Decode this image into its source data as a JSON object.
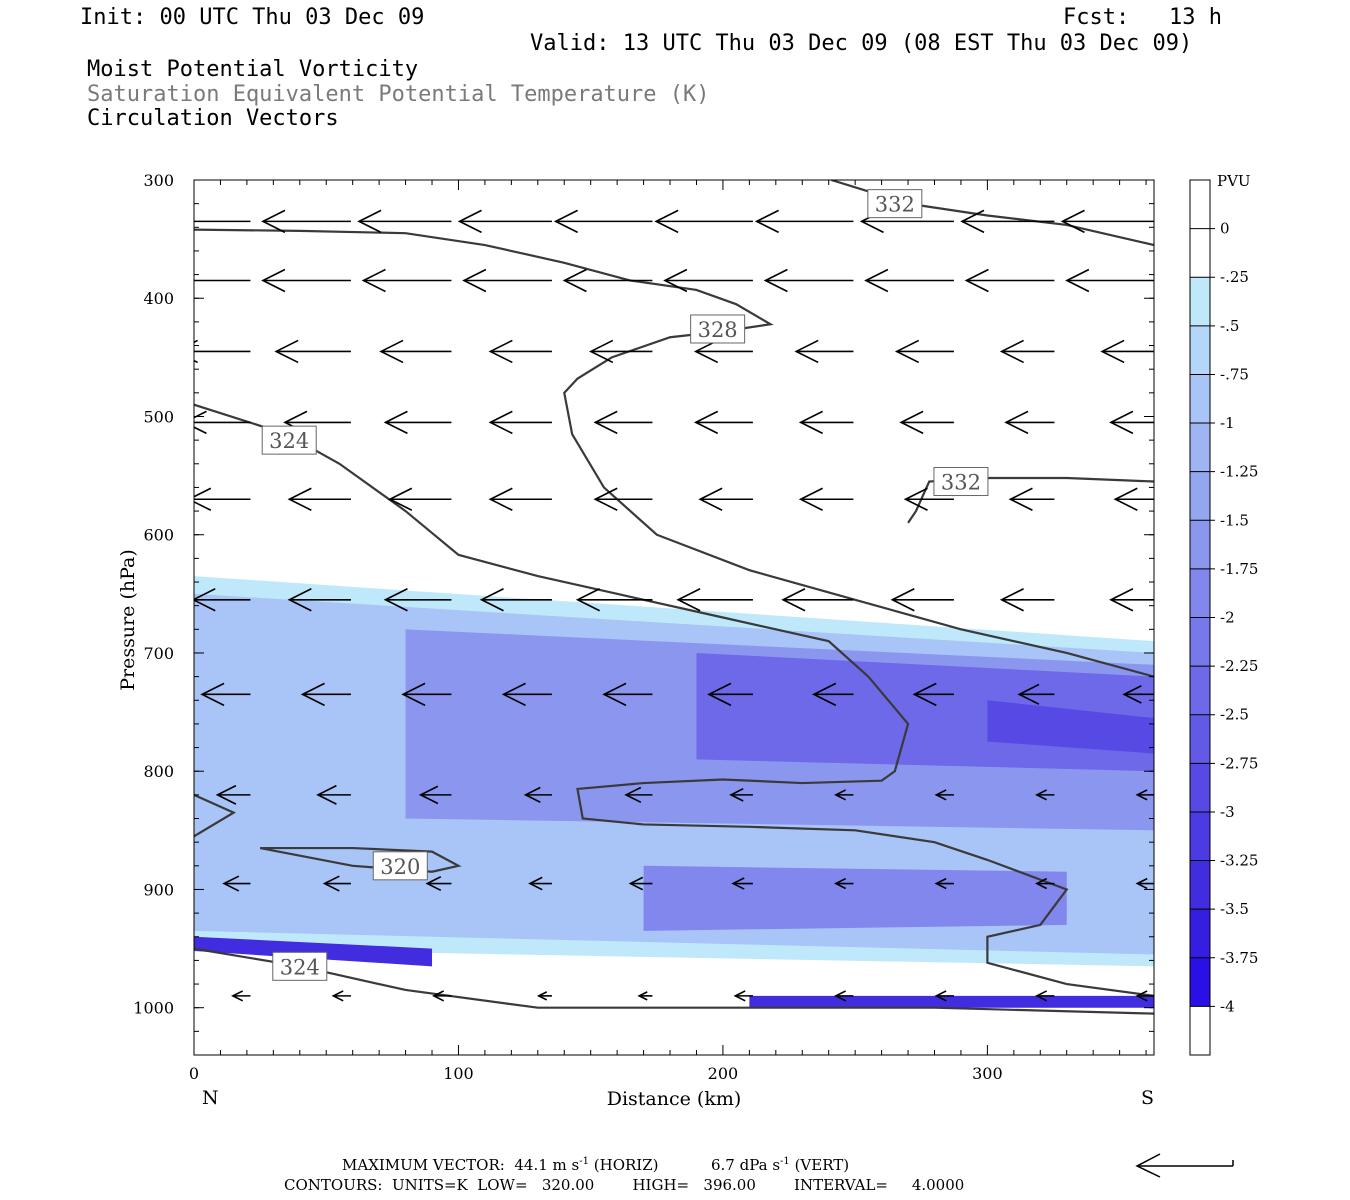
{
  "header": {
    "init": "Init: 00 UTC Thu 03 Dec 09",
    "fcst": "Fcst:   13 h",
    "valid": "Valid: 13 UTC Thu 03 Dec 09 (08 EST Thu 03 Dec 09)",
    "field1": "Moist Potential Vorticity",
    "field2": "Saturation Equivalent Potential Temperature (K)",
    "field3": "Circulation Vectors"
  },
  "footer": {
    "maxvec_label": "MAXIMUM VECTOR:",
    "horiz": "44.1 m s",
    "horiz_unit": "(HORIZ)",
    "vert": "6.7 dPa s",
    "vert_unit": "(VERT)",
    "exp": "-1",
    "contours": "CONTOURS:  UNITS=K  LOW=   320.00        HIGH=   396.00        INTERVAL=     4.0000"
  },
  "colors": {
    "pv_scale": [
      "#ffffff",
      "#bfe9fb",
      "#b4d6f8",
      "#a9c4f6",
      "#9fb4f3",
      "#95a6f1",
      "#8b97ef",
      "#8187ec",
      "#7778ea",
      "#6d69e8",
      "#625ae6",
      "#574ae4",
      "#4c3be2",
      "#412ce0",
      "#361ee0",
      "#2a0fe6"
    ],
    "contour": "#3a3a3a"
  },
  "chart_data": {
    "type": "heatmap",
    "xlabel": "Distance (km)",
    "ylabel": "Pressure (hPa)",
    "xlim": [
      0,
      363
    ],
    "ylim": [
      1040,
      300
    ],
    "y_scale": "linear",
    "x_ticks": [
      0,
      100,
      200,
      300
    ],
    "y_ticks": [
      300,
      400,
      500,
      600,
      700,
      800,
      900,
      1000
    ],
    "left_end_label": "N",
    "right_end_label": "S",
    "colorbar": {
      "title": "PVU",
      "labels": [
        "0",
        "-.25",
        "-.5",
        "-.75",
        "-1",
        "-1.25",
        "-1.5",
        "-1.75",
        "-2",
        "-2.25",
        "-2.5",
        "-2.75",
        "-3",
        "-3.25",
        "-3.5",
        "-3.75",
        "-4"
      ]
    },
    "mpv_bands": [
      {
        "level": -0.25,
        "x": [
          0,
          363
        ],
        "top": [
          635,
          690
        ],
        "bottom": [
          950,
          965
        ]
      },
      {
        "level": -0.75,
        "x": [
          0,
          363
        ],
        "top": [
          650,
          700
        ],
        "bottom": [
          935,
          955
        ]
      },
      {
        "level": -1.5,
        "x": [
          80,
          363
        ],
        "top": [
          680,
          710
        ],
        "bottom": [
          840,
          850
        ]
      },
      {
        "level": -2.25,
        "x": [
          190,
          363
        ],
        "top": [
          700,
          720
        ],
        "bottom": [
          790,
          800
        ]
      },
      {
        "level": -2.75,
        "x": [
          300,
          363
        ],
        "top": [
          740,
          755
        ],
        "bottom": [
          775,
          785
        ]
      },
      {
        "level": -1.75,
        "x": [
          170,
          330
        ],
        "top": [
          880,
          885
        ],
        "bottom": [
          935,
          930
        ]
      },
      {
        "level": -3.25,
        "x": [
          0,
          90
        ],
        "top": [
          940,
          950
        ],
        "bottom": [
          952,
          965
        ]
      },
      {
        "level": -3.25,
        "x": [
          210,
          363
        ],
        "top": [
          990,
          990
        ],
        "bottom": [
          1000,
          1000
        ]
      }
    ],
    "theta_contours": [
      {
        "label": "332",
        "label_at": [
          265,
          320
        ],
        "points": [
          [
            241,
            300
          ],
          [
            270,
            320
          ],
          [
            300,
            330
          ],
          [
            330,
            338
          ],
          [
            363,
            355
          ]
        ]
      },
      {
        "label": "328",
        "label_at": [
          198,
          426
        ],
        "points": [
          [
            0,
            342
          ],
          [
            40,
            343
          ],
          [
            80,
            345
          ],
          [
            110,
            355
          ],
          [
            140,
            370
          ],
          [
            165,
            385
          ],
          [
            190,
            393
          ],
          [
            205,
            405
          ],
          [
            218,
            422
          ],
          [
            200,
            428
          ],
          [
            180,
            433
          ],
          [
            158,
            450
          ],
          [
            145,
            468
          ],
          [
            140,
            480
          ],
          [
            143,
            515
          ],
          [
            155,
            560
          ],
          [
            175,
            600
          ],
          [
            210,
            630
          ],
          [
            250,
            655
          ],
          [
            290,
            680
          ],
          [
            330,
            700
          ],
          [
            363,
            720
          ]
        ]
      },
      {
        "label": "324",
        "label_at": [
          36,
          520
        ],
        "points": [
          [
            0,
            490
          ],
          [
            35,
            515
          ],
          [
            55,
            540
          ],
          [
            80,
            580
          ],
          [
            100,
            617
          ],
          [
            130,
            635
          ],
          [
            160,
            650
          ],
          [
            200,
            670
          ],
          [
            240,
            690
          ],
          [
            255,
            720
          ],
          [
            270,
            760
          ],
          [
            265,
            800
          ],
          [
            260,
            808
          ],
          [
            230,
            810
          ],
          [
            200,
            807
          ],
          [
            170,
            810
          ],
          [
            145,
            815
          ],
          [
            147,
            840
          ],
          [
            170,
            845
          ],
          [
            210,
            847
          ],
          [
            250,
            850
          ],
          [
            280,
            860
          ],
          [
            300,
            875
          ],
          [
            330,
            900
          ],
          [
            320,
            930
          ],
          [
            300,
            940
          ],
          [
            300,
            962
          ],
          [
            330,
            980
          ],
          [
            363,
            990
          ]
        ]
      },
      {
        "label": "332",
        "label_at": [
          290,
          555
        ],
        "points": [
          [
            270,
            590
          ],
          [
            273,
            580
          ],
          [
            278,
            555
          ],
          [
            300,
            552
          ],
          [
            330,
            552
          ],
          [
            363,
            555
          ]
        ]
      },
      {
        "label": "320",
        "label_at": [
          78,
          880
        ],
        "points": [
          [
            25,
            865
          ],
          [
            60,
            865
          ],
          [
            90,
            868
          ],
          [
            100,
            880
          ],
          [
            90,
            885
          ],
          [
            60,
            880
          ],
          [
            25,
            865
          ]
        ]
      },
      {
        "label": "324",
        "label_at": [
          40,
          965
        ],
        "points": [
          [
            0,
            950
          ],
          [
            40,
            965
          ],
          [
            80,
            985
          ],
          [
            130,
            1000
          ],
          [
            200,
            1000
          ],
          [
            280,
            1000
          ],
          [
            363,
            1005
          ]
        ]
      },
      {
        "label": "",
        "points": [
          [
            0,
            820
          ],
          [
            15,
            835
          ],
          [
            0,
            855
          ]
        ]
      }
    ],
    "vectors": [
      {
        "p": 335,
        "u": [
          -40,
          -40,
          -42,
          -42,
          -44,
          -44,
          -44,
          -42,
          -42,
          -42
        ],
        "w": [
          0,
          0,
          0,
          0,
          0,
          0,
          0,
          0,
          0,
          0
        ]
      },
      {
        "p": 385,
        "u": [
          -38,
          -40,
          -40,
          -40,
          -40,
          -40,
          -40,
          -40,
          -40,
          -40
        ],
        "w": [
          0,
          0,
          0,
          0,
          0,
          0,
          0,
          0,
          0,
          0
        ]
      },
      {
        "p": 445,
        "u": [
          -34,
          -34,
          -32,
          -28,
          -28,
          -26,
          -26,
          -26,
          -24,
          -24
        ],
        "w": [
          0,
          0,
          0,
          0,
          0,
          0,
          0,
          0,
          0,
          0
        ]
      },
      {
        "p": 505,
        "u": [
          -30,
          -30,
          -30,
          -28,
          -26,
          -26,
          -24,
          -24,
          -22,
          -20
        ],
        "w": [
          0,
          0,
          0,
          0,
          0,
          0,
          0,
          0,
          0,
          0
        ]
      },
      {
        "p": 570,
        "u": [
          -28,
          -28,
          -28,
          -28,
          -26,
          -24,
          -24,
          -22,
          -20,
          -18
        ],
        "w": [
          0,
          0,
          0,
          0,
          0,
          0,
          0,
          0,
          0,
          0
        ]
      },
      {
        "p": 655,
        "u": [
          -26,
          -28,
          -30,
          -32,
          -34,
          -34,
          -32,
          -28,
          -24,
          -20
        ],
        "w": [
          0,
          0,
          0,
          0,
          0,
          0,
          0,
          0,
          0,
          0
        ]
      },
      {
        "p": 735,
        "u": [
          -22,
          -22,
          -22,
          -22,
          -22,
          -20,
          -18,
          -18,
          -16,
          -14
        ],
        "w": [
          0,
          0,
          0,
          0,
          0,
          0,
          0,
          0,
          0,
          0
        ]
      },
      {
        "p": 820,
        "u": [
          -15,
          -15,
          -14,
          -12,
          -12,
          -10,
          -8,
          -8,
          -8,
          -8
        ],
        "w": [
          0,
          0,
          0,
          0,
          0,
          0,
          0,
          0,
          0,
          0
        ]
      },
      {
        "p": 895,
        "u": [
          -12,
          -12,
          -11,
          -10,
          -10,
          -9,
          -8,
          -8,
          -8,
          -8
        ],
        "w": [
          0,
          0,
          0,
          0,
          0,
          0,
          0,
          0,
          0,
          0
        ]
      },
      {
        "p": 990,
        "u": [
          -8,
          -8,
          -8,
          -6,
          -6,
          -8,
          -8,
          -8,
          -8,
          -8
        ],
        "w": [
          0,
          0,
          0,
          0,
          0,
          0,
          0,
          0,
          0,
          0
        ]
      }
    ]
  }
}
